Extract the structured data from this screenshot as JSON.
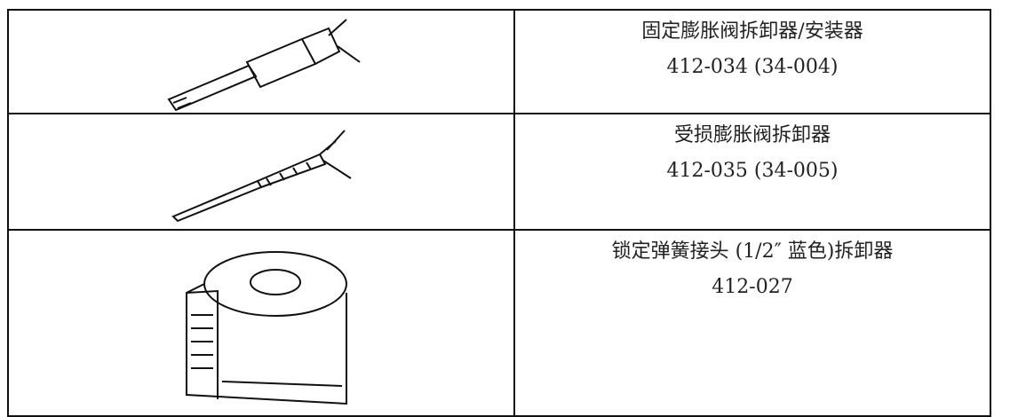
{
  "table": {
    "rows": [
      {
        "name": "固定膨胀阀拆卸器/安装器",
        "code": "412-034 (34-004)"
      },
      {
        "name": "受损膨胀阀拆卸器",
        "code": "412-035 (34-005)"
      },
      {
        "name": "锁定弹簧接头 (1/2″ 蓝色)拆卸器",
        "code": "412-027"
      }
    ]
  }
}
